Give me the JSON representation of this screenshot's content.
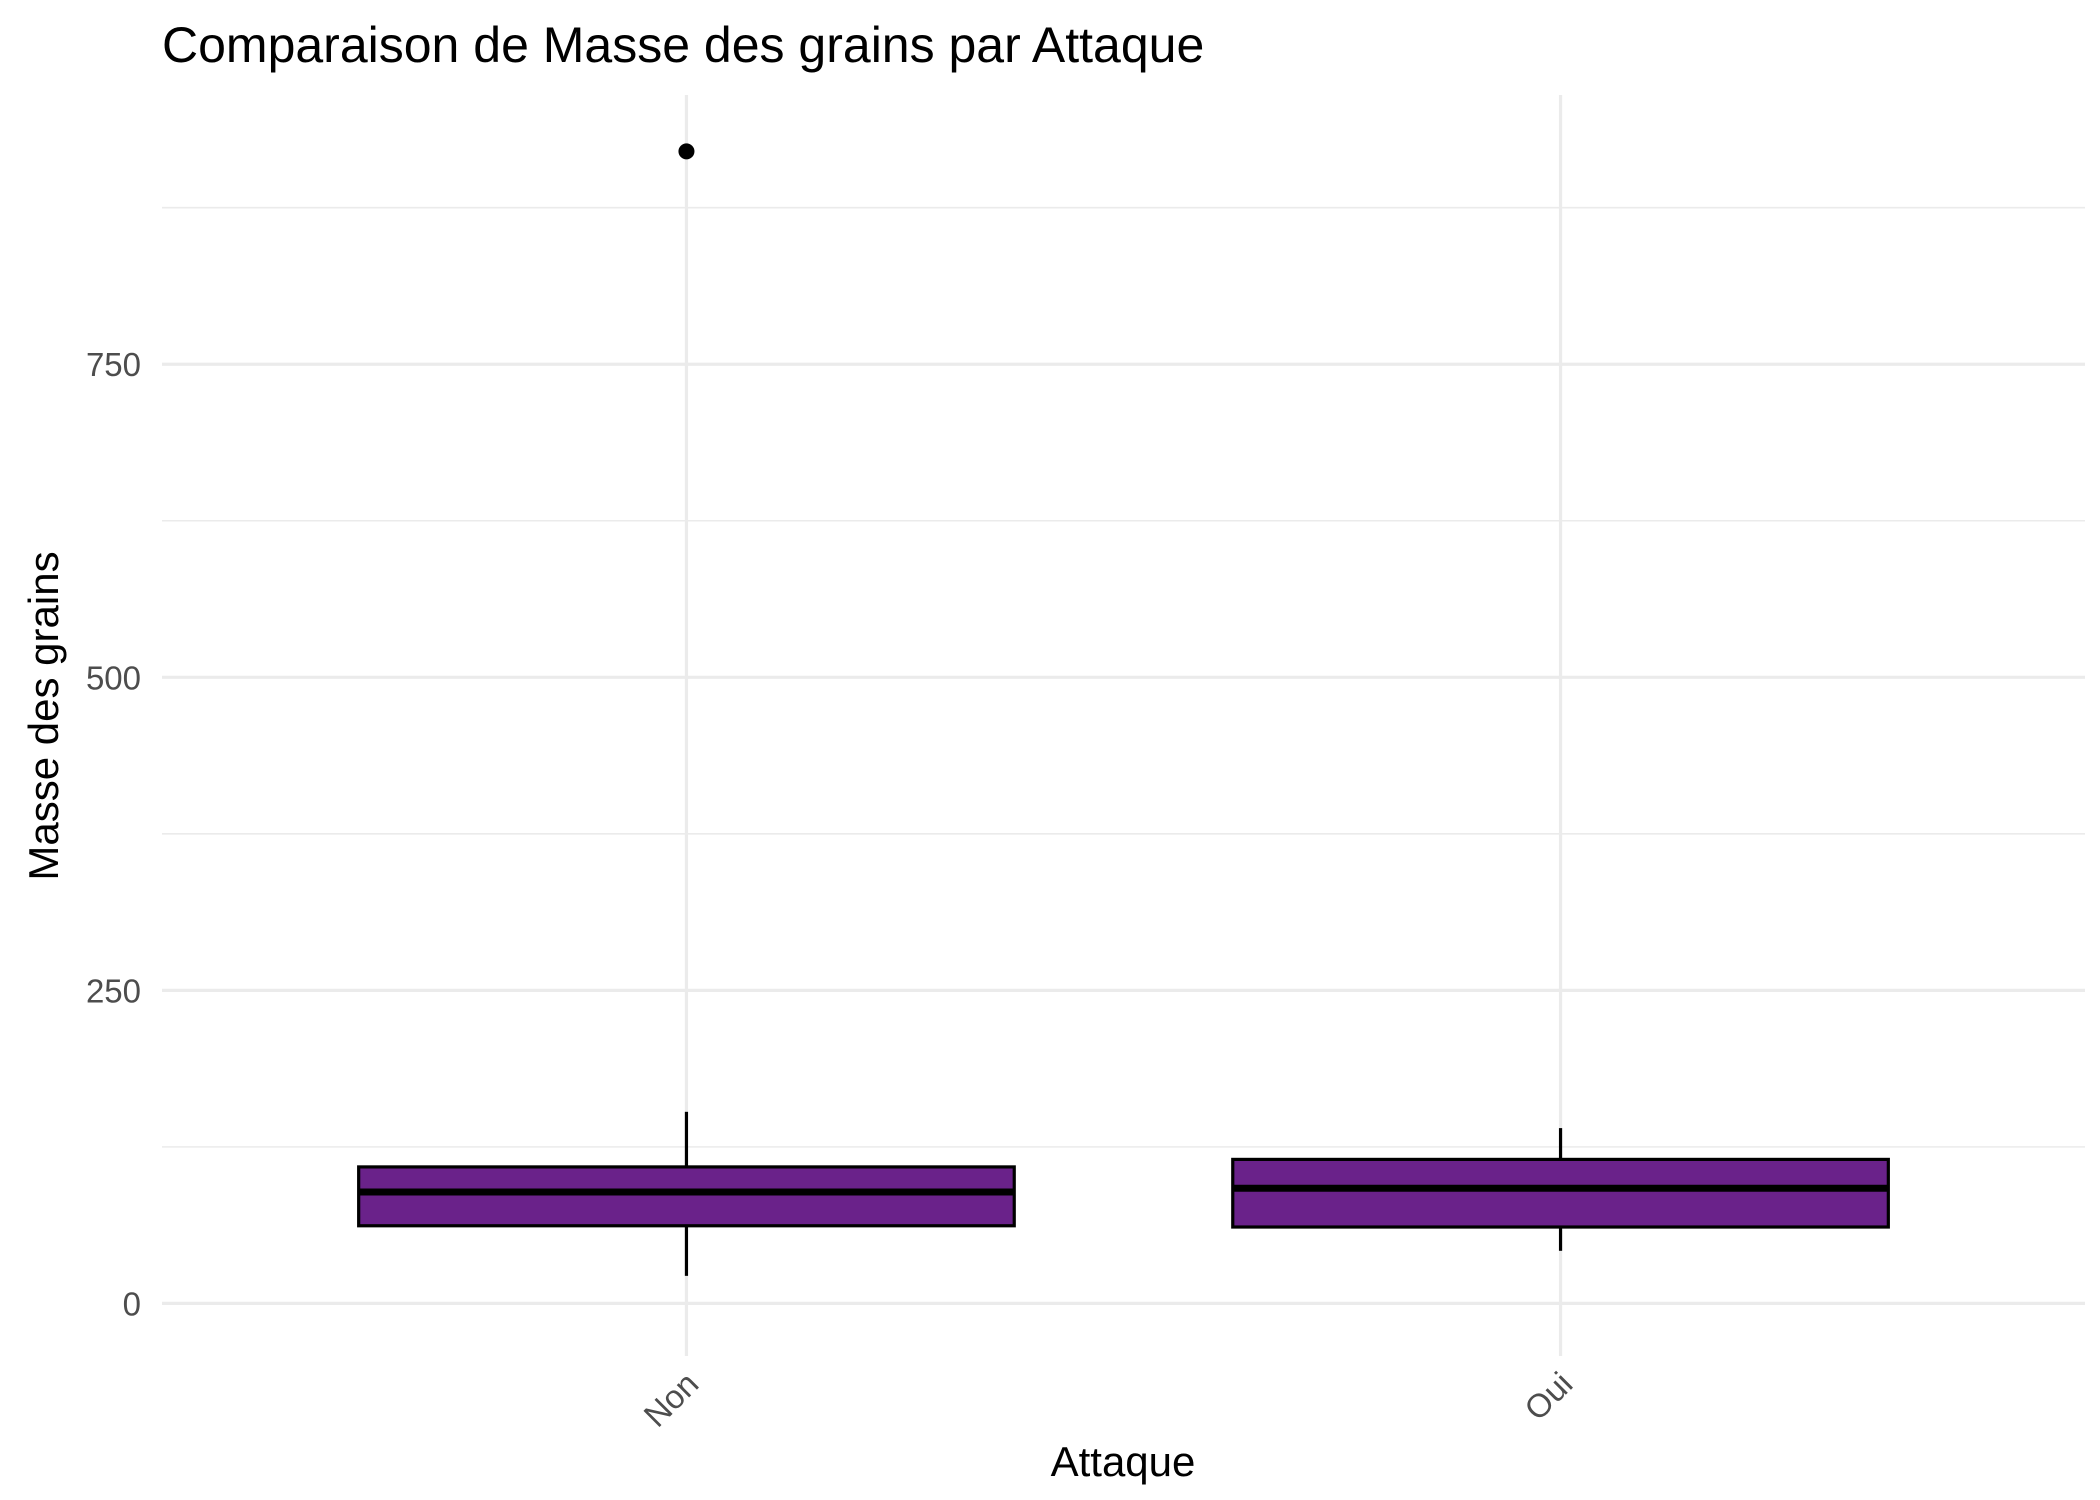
{
  "chart_data": {
    "type": "boxplot",
    "title": "Comparaison de Masse des grains par Attaque",
    "xlabel": "Attaque",
    "ylabel": "Masse des grains",
    "categories": [
      "Non",
      "Oui"
    ],
    "ylim": [
      -42,
      965
    ],
    "y_ticks": [
      0,
      250,
      500,
      750
    ],
    "grid": true,
    "legend": "none",
    "box_fill": "#6a228a",
    "box_stroke": "#000000",
    "outlier_color": "#000000",
    "boxes": [
      {
        "category": "Non",
        "whisker_low": 22,
        "q1": 62,
        "median": 89,
        "q3": 109,
        "whisker_high": 153,
        "outliers": [
          920
        ]
      },
      {
        "category": "Oui",
        "whisker_low": 42,
        "q1": 61,
        "median": 92,
        "q3": 115,
        "whisker_high": 140,
        "outliers": []
      }
    ]
  }
}
